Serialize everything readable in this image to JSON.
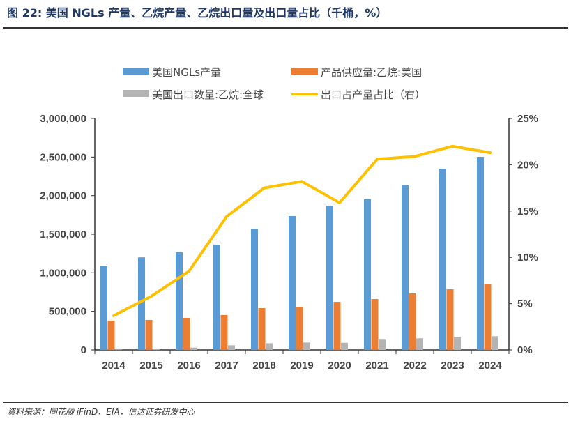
{
  "title": "图 22:  美国 NGLs 产量、乙烷产量、乙烷出口量及出口量占比（千桶，%）",
  "source": "资料来源：同花顺 iFinD、EIA，信达证券研发中心",
  "chart_data": {
    "type": "bar",
    "title": "",
    "categories": [
      "2014",
      "2015",
      "2016",
      "2017",
      "2018",
      "2019",
      "2020",
      "2021",
      "2022",
      "2023",
      "2024"
    ],
    "y_left": {
      "range": [
        0,
        3000000
      ],
      "ticks": [
        "0",
        "500,000",
        "1,000,000",
        "1,500,000",
        "2,000,000",
        "2,500,000",
        "3,000,000"
      ]
    },
    "y_right": {
      "range": [
        0,
        25
      ],
      "ticks": [
        "0%",
        "5%",
        "10%",
        "15%",
        "20%",
        "25%"
      ]
    },
    "grid": false,
    "legend_placement": "top",
    "series": [
      {
        "name": "美国NGLs产量",
        "type": "bar",
        "axis": "left",
        "color": "#5b9bd5",
        "values": [
          1085000,
          1200000,
          1265000,
          1364000,
          1572000,
          1735000,
          1870000,
          1952000,
          2141000,
          2349000,
          2503000
        ]
      },
      {
        "name": "产品供应量:乙烷:美国",
        "type": "bar",
        "axis": "left",
        "color": "#ed7d31",
        "values": [
          380000,
          389000,
          416000,
          452000,
          542000,
          560000,
          623000,
          660000,
          732000,
          786000,
          849000
        ]
      },
      {
        "name": "美国出口数量:乙烷:全球",
        "type": "bar",
        "axis": "left",
        "color": "#b4b4b4",
        "values": [
          6000,
          15000,
          30000,
          60000,
          87000,
          96000,
          93000,
          133000,
          151000,
          169000,
          178000
        ]
      },
      {
        "name": "出口占产量占比（右）",
        "type": "line",
        "axis": "right",
        "color": "#ffc000",
        "values": [
          3.7,
          5.8,
          8.5,
          14.4,
          17.5,
          18.2,
          15.9,
          20.6,
          20.9,
          22.0,
          21.3
        ]
      }
    ]
  }
}
